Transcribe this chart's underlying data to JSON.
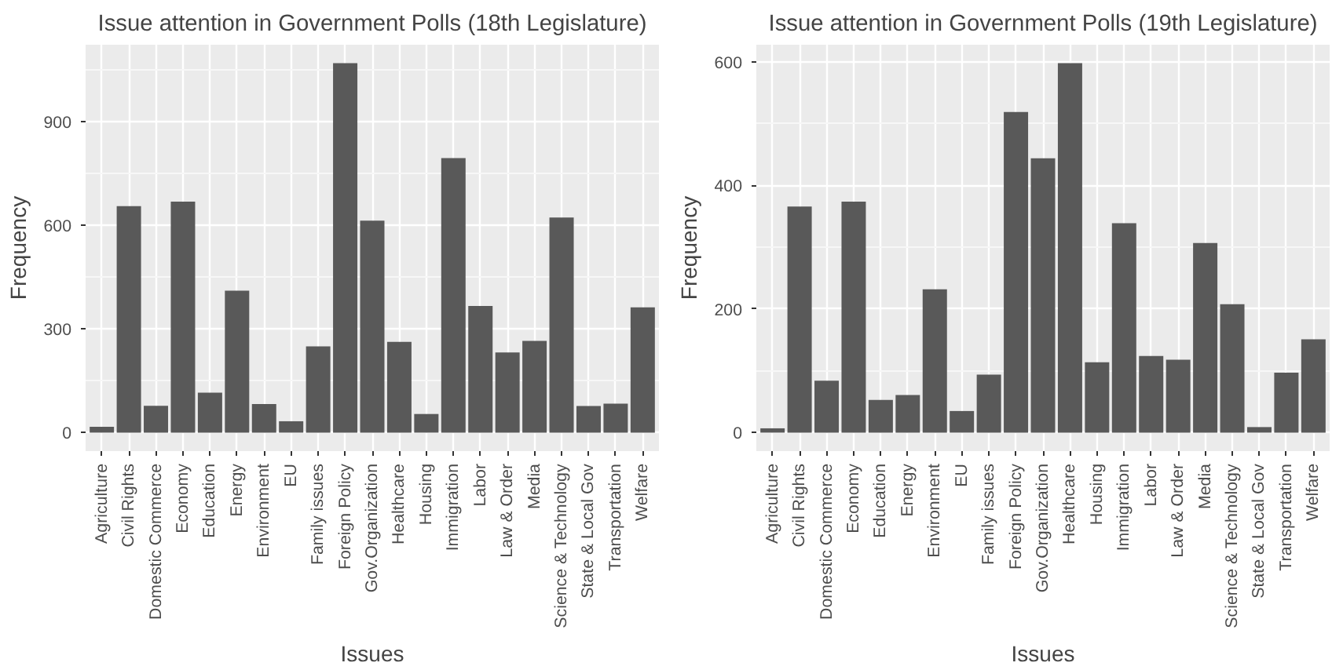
{
  "chart_data": [
    {
      "type": "bar",
      "title": "Issue attention in Government Polls (18th Legislature)",
      "xlabel": "Issues",
      "ylabel": "Frequency",
      "categories": [
        "Agriculture",
        "Civil Rights",
        "Domestic Commerce",
        "Economy",
        "Education",
        "Energy",
        "Environment",
        "EU",
        "Family issues",
        "Foreign Policy",
        "Gov.Organization",
        "Healthcare",
        "Housing",
        "Immigration",
        "Labor",
        "Law & Order",
        "Media",
        "Science & Technology",
        "State & Local Gov",
        "Transportation",
        "Welfare"
      ],
      "values": [
        17,
        656,
        78,
        669,
        116,
        411,
        83,
        33,
        250,
        1070,
        614,
        263,
        54,
        795,
        367,
        232,
        266,
        623,
        77,
        84,
        363
      ],
      "color": "#595959",
      "ylim": [
        -53.5,
        1123.5
      ],
      "yticks": [
        0,
        300,
        600,
        900
      ],
      "grid": true
    },
    {
      "type": "bar",
      "title": "Issue attention in Government Polls (19th Legislature)",
      "xlabel": "Issues",
      "ylabel": "Frequency",
      "categories": [
        "Agriculture",
        "Civil Rights",
        "Domestic Commerce",
        "Economy",
        "Education",
        "Energy",
        "Environment",
        "EU",
        "Family issues",
        "Foreign Policy",
        "Gov.Organization",
        "Healthcare",
        "Housing",
        "Immigration",
        "Labor",
        "Law & Order",
        "Media",
        "Science & Technology",
        "State & Local Gov",
        "Transportation",
        "Welfare"
      ],
      "values": [
        7,
        366,
        84,
        374,
        53,
        61,
        232,
        35,
        94,
        519,
        444,
        598,
        114,
        339,
        124,
        118,
        307,
        208,
        9,
        97,
        151
      ],
      "color": "#595959",
      "ylim": [
        -29.9,
        627.9
      ],
      "yticks": [
        0,
        200,
        400,
        600
      ],
      "grid": true
    }
  ]
}
